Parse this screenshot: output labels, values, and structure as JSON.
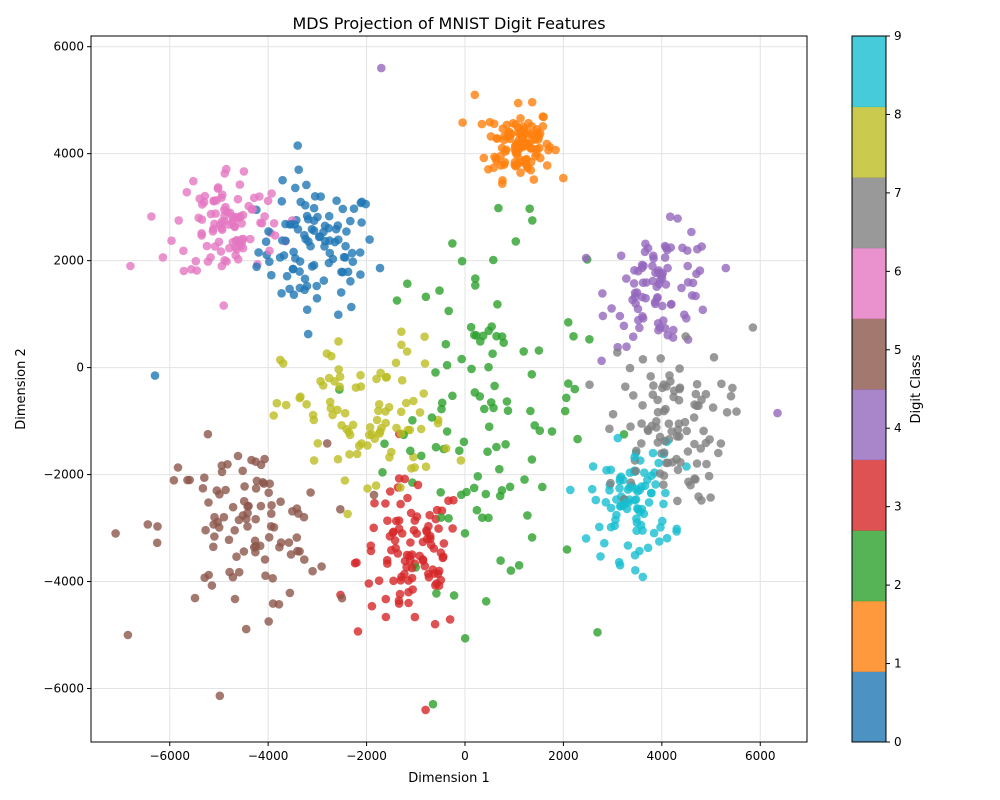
{
  "chart_data": {
    "type": "scatter",
    "title": "MDS Projection of MNIST Digit Features",
    "xlabel": "Dimension 1",
    "ylabel": "Dimension 2",
    "xlim": [
      -7600,
      6950
    ],
    "ylim": [
      -7000,
      6200
    ],
    "xticks": [
      -6000,
      -4000,
      -2000,
      0,
      2000,
      4000,
      6000
    ],
    "yticks": [
      -6000,
      -4000,
      -2000,
      0,
      2000,
      4000,
      6000
    ],
    "grid": true,
    "colorbar": {
      "label": "Digit Class",
      "ticks": [
        0,
        1,
        2,
        3,
        4,
        5,
        6,
        7,
        8,
        9
      ],
      "colors": [
        "#1f77b4",
        "#ff7f0e",
        "#2ca02c",
        "#d62728",
        "#9467bd",
        "#8c564b",
        "#e377c2",
        "#7f7f7f",
        "#bcbd22",
        "#17becf"
      ]
    },
    "point_alpha": 0.8,
    "clusters": [
      {
        "digit": 0,
        "center": [
          -3000,
          2200
        ],
        "spread": [
          1000,
          1000
        ],
        "count": 100
      },
      {
        "digit": 1,
        "center": [
          1100,
          4200
        ],
        "spread": [
          550,
          550
        ],
        "count": 110
      },
      {
        "digit": 2,
        "center": [
          400,
          -800
        ],
        "spread": [
          1700,
          2700
        ],
        "count": 110
      },
      {
        "digit": 3,
        "center": [
          -1100,
          -3600
        ],
        "spread": [
          900,
          1200
        ],
        "count": 100
      },
      {
        "digit": 4,
        "center": [
          4000,
          1500
        ],
        "spread": [
          900,
          900
        ],
        "count": 90
      },
      {
        "digit": 5,
        "center": [
          -4500,
          -3000
        ],
        "spread": [
          1400,
          1300
        ],
        "count": 100
      },
      {
        "digit": 6,
        "center": [
          -4800,
          2700
        ],
        "spread": [
          900,
          900
        ],
        "count": 100
      },
      {
        "digit": 7,
        "center": [
          4100,
          -1100
        ],
        "spread": [
          1000,
          1200
        ],
        "count": 100
      },
      {
        "digit": 8,
        "center": [
          -2000,
          -1000
        ],
        "spread": [
          1400,
          1300
        ],
        "count": 90
      },
      {
        "digit": 9,
        "center": [
          3400,
          -2500
        ],
        "spread": [
          700,
          900
        ],
        "count": 90
      }
    ],
    "sample_points": [
      {
        "digit": 0,
        "x": -6300,
        "y": -150
      },
      {
        "digit": 0,
        "x": -3400,
        "y": 4150
      },
      {
        "digit": 1,
        "x": 200,
        "y": 5100
      },
      {
        "digit": 3,
        "x": -800,
        "y": -6400
      },
      {
        "digit": 4,
        "x": -1700,
        "y": 5600
      },
      {
        "digit": 4,
        "x": 6350,
        "y": -850
      },
      {
        "digit": 5,
        "x": -7100,
        "y": -3100
      },
      {
        "digit": 5,
        "x": -6850,
        "y": -5000
      },
      {
        "digit": 6,
        "x": -6800,
        "y": 1900
      },
      {
        "digit": 7,
        "x": 5850,
        "y": 750
      }
    ]
  }
}
